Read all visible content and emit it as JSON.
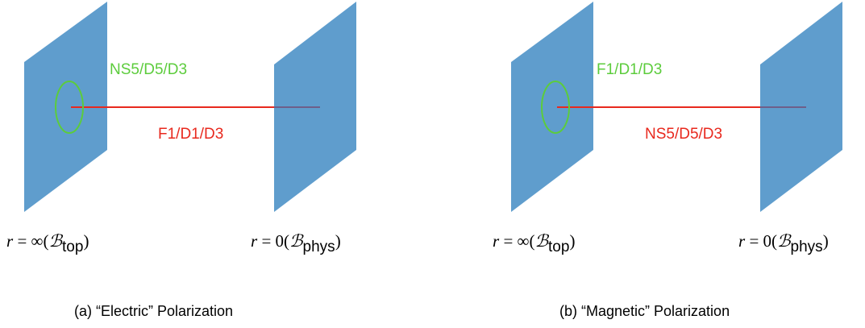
{
  "panels": [
    {
      "id": "a",
      "loop_label": "NS5/D5/D3",
      "line_label": "F1/D1/D3",
      "left_boundary": {
        "prefix": "r = ∞(",
        "script": "ℬ",
        "sub": "top",
        "suffix": ")"
      },
      "right_boundary": {
        "prefix": "r = 0(",
        "script": "ℬ",
        "sub": "phys",
        "suffix": ")"
      },
      "caption": "(a) “Electric” Polarization"
    },
    {
      "id": "b",
      "loop_label": "F1/D1/D3",
      "line_label": "NS5/D5/D3",
      "left_boundary": {
        "prefix": "r = ∞(",
        "script": "ℬ",
        "sub": "top",
        "suffix": ")"
      },
      "right_boundary": {
        "prefix": "r = 0(",
        "script": "ℬ",
        "sub": "phys",
        "suffix": ")"
      },
      "caption": "(b) “Magnetic” Polarization"
    }
  ],
  "colors": {
    "plate": "#5f9dcd",
    "loop": "#5ccc3c",
    "line": "#e8291e"
  }
}
